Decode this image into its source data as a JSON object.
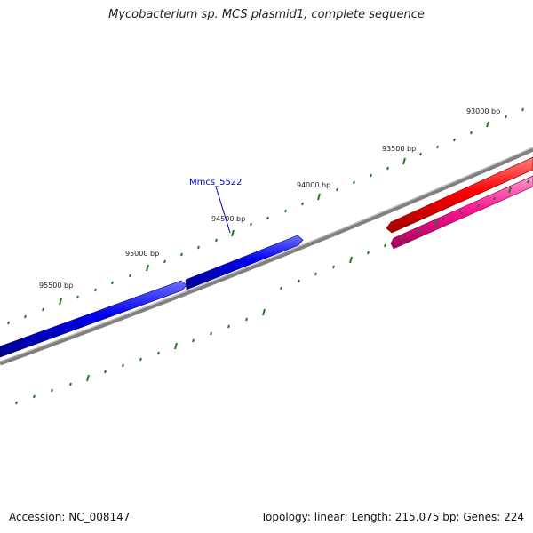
{
  "header": {
    "title": "Mycobacterium sp. MCS plasmid1, complete sequence"
  },
  "footer": {
    "accession": "Accession: NC_008147",
    "summary": "Topology: linear; Length: 215,075 bp; Genes: 224"
  },
  "colors": {
    "background": "#ffffff",
    "backbone": "#808080",
    "tick": "#1f7a1f",
    "gene_forward": "#0000ee",
    "gene_reverse_1": "#ff0000",
    "gene_reverse_2": "#ff1493",
    "gene_label": "#0000cc"
  },
  "scale": {
    "tick_labels": [
      "93000 bp",
      "93500 bp",
      "94000 bp",
      "94500 bp",
      "95000 bp",
      "95500 bp"
    ]
  },
  "genes": [
    {
      "label": "Mmcs_5522",
      "strand": "forward",
      "color_key": "gene_forward"
    },
    {
      "label": "",
      "strand": "forward",
      "color_key": "gene_forward"
    },
    {
      "label": "",
      "strand": "reverse",
      "color_key": "gene_reverse_1"
    },
    {
      "label": "",
      "strand": "reverse",
      "color_key": "gene_reverse_2"
    }
  ]
}
